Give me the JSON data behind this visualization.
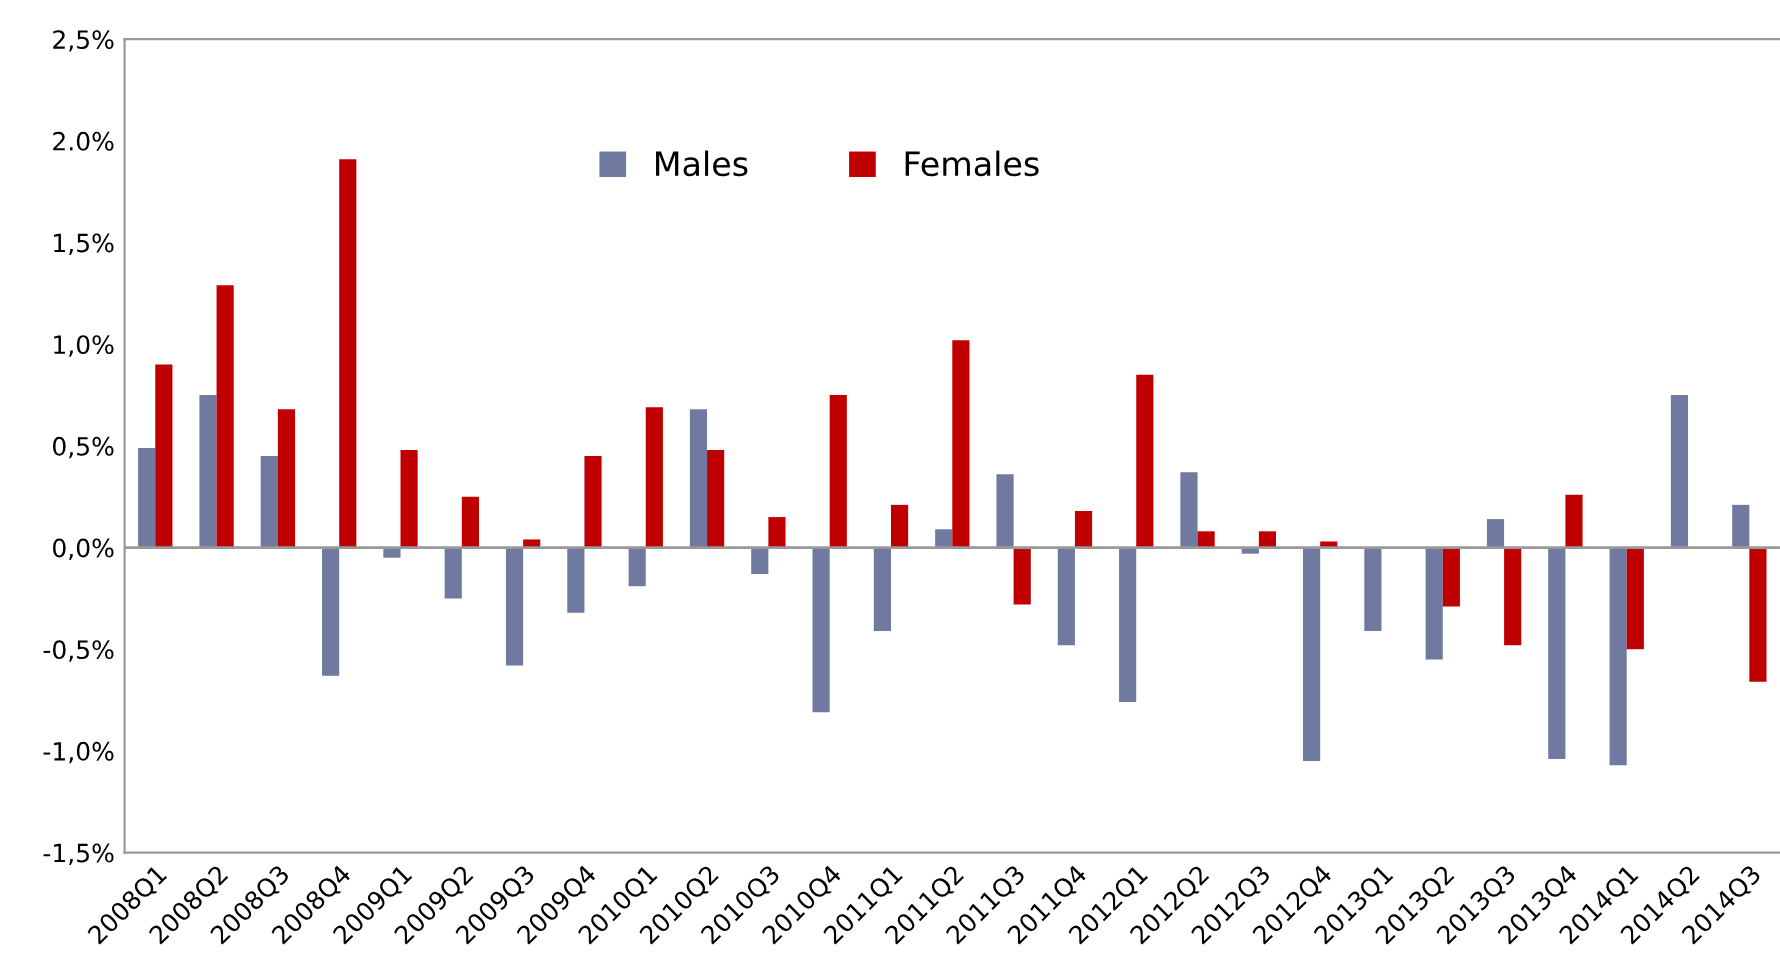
{
  "chart_data": {
    "type": "bar",
    "categories": [
      "2008Q1",
      "2008Q2",
      "2008Q3",
      "2008Q4",
      "2009Q1",
      "2009Q2",
      "2009Q3",
      "2009Q4",
      "2010Q1",
      "2010Q2",
      "2010Q3",
      "2010Q4",
      "2011Q1",
      "2011Q2",
      "2011Q3",
      "2011Q4",
      "2012Q1",
      "2012Q2",
      "2012Q3",
      "2012Q4",
      "2013Q1",
      "2013Q2",
      "2013Q3",
      "2013Q4",
      "2014Q1",
      "2014Q2",
      "2014Q3"
    ],
    "series": [
      {
        "name": "Males",
        "color": "#7079a0",
        "values": [
          0.49,
          0.75,
          0.45,
          -0.63,
          -0.05,
          -0.25,
          -0.58,
          -0.32,
          -0.19,
          0.68,
          -0.13,
          -0.81,
          -0.41,
          0.09,
          0.36,
          -0.48,
          -0.76,
          0.37,
          -0.03,
          -1.05,
          -0.41,
          -0.55,
          0.14,
          -1.04,
          -1.07,
          0.75,
          0.21
        ]
      },
      {
        "name": "Females",
        "color": "#c00000",
        "values": [
          0.9,
          1.29,
          0.68,
          1.91,
          0.48,
          0.25,
          0.04,
          0.45,
          0.69,
          0.48,
          0.15,
          0.75,
          0.21,
          1.02,
          -0.28,
          0.18,
          0.85,
          0.08,
          0.08,
          0.03,
          0.0,
          -0.29,
          -0.48,
          0.26,
          -0.5,
          0.0,
          -0.66
        ]
      }
    ],
    "ylim": [
      -1.5,
      2.5
    ],
    "yticks": [
      {
        "value": -1.5,
        "label": "-1,5%"
      },
      {
        "value": -1.0,
        "label": "-1,0%"
      },
      {
        "value": -0.5,
        "label": "-0,5%"
      },
      {
        "value": 0.0,
        "label": "0,0%"
      },
      {
        "value": 0.5,
        "label": "0,5%"
      },
      {
        "value": 1.0,
        "label": "1,0%"
      },
      {
        "value": 1.5,
        "label": "1,5%"
      },
      {
        "value": 2.0,
        "label": "2.0%"
      },
      {
        "value": 2.5,
        "label": "2,5%"
      }
    ],
    "ref_lines": [
      {
        "axis": "y",
        "value": 0.0,
        "color": "#999999"
      }
    ],
    "grid": false,
    "legend": "top"
  }
}
